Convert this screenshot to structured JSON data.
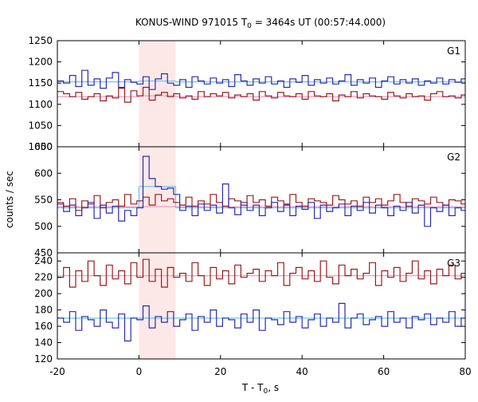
{
  "chart_data": {
    "type": "line",
    "title": {
      "main": "KONUS-WIND 971015 T",
      "sub": "0",
      "rest": " = 3464s UT (00:57:44.000)"
    },
    "xlabel": {
      "main": "T - T",
      "sub": "0",
      "rest": ", s"
    },
    "ylabel": "counts / sec",
    "xlim": [
      -20,
      80
    ],
    "xticks": [
      -20,
      0,
      20,
      40,
      60,
      80
    ],
    "highlight": {
      "x": [
        0,
        9
      ],
      "color": "#fde8e8"
    },
    "colors": {
      "red_series": "#9b1b1b",
      "blue_series": "#2b2bb0",
      "pink_fit": "#e6a0c8",
      "cyan_fit": "#6cc8e6",
      "highlight": "#fde8e8",
      "frame": "#000000"
    },
    "grid": false,
    "panels": [
      {
        "label": "G1",
        "ylim": [
          1000,
          1250
        ],
        "yticks": [
          1000,
          1050,
          1100,
          1150,
          1200,
          1250
        ],
        "bin_width": 1.5,
        "x_start": -20,
        "series": [
          {
            "color": "red",
            "values": [
              1130,
              1125,
              1118,
              1128,
              1112,
              1118,
              1125,
              1108,
              1120,
              1115,
              1138,
              1105,
              1132,
              1120,
              1140,
              1110,
              1122,
              1128,
              1118,
              1125,
              1115,
              1120,
              1112,
              1130,
              1118,
              1125,
              1120,
              1128,
              1115,
              1122,
              1118,
              1125,
              1110,
              1130,
              1120,
              1115,
              1128,
              1120,
              1118,
              1125,
              1112,
              1130,
              1120,
              1118,
              1125,
              1108,
              1122,
              1118,
              1130,
              1115,
              1125,
              1120,
              1118,
              1112,
              1128,
              1120,
              1115,
              1125,
              1118,
              1120,
              1110,
              1125,
              1130,
              1118,
              1120,
              1115,
              1122,
              1118
            ]
          },
          {
            "color": "blue",
            "values": [
              1155,
              1150,
              1168,
              1142,
              1180,
              1145,
              1160,
              1138,
              1162,
              1175,
              1140,
              1158,
              1152,
              1148,
              1165,
              1135,
              1160,
              1172,
              1150,
              1145,
              1158,
              1140,
              1165,
              1155,
              1148,
              1162,
              1150,
              1158,
              1142,
              1170,
              1155,
              1145,
              1160,
              1150,
              1165,
              1148,
              1155,
              1140,
              1160,
              1152,
              1168,
              1145,
              1158,
              1150,
              1162,
              1148,
              1155,
              1170,
              1145,
              1158,
              1150,
              1162,
              1140,
              1155,
              1165,
              1148,
              1158,
              1150,
              1160,
              1145,
              1155,
              1150,
              1162,
              1148,
              1158,
              1152,
              1160,
              1150
            ]
          }
        ],
        "fits": [
          {
            "color": "pink",
            "pre": [
              -20,
              0,
              1118
            ],
            "burst": [
              0,
              9,
              1120
            ],
            "post": [
              9,
              80,
              1118
            ]
          },
          {
            "color": "cyan",
            "pre": [
              -20,
              0,
              1153
            ],
            "burst": [
              0,
              9,
              1155
            ],
            "post": [
              9,
              80,
              1153
            ]
          }
        ]
      },
      {
        "label": "G2",
        "ylim": [
          450,
          650
        ],
        "yticks": [
          450,
          500,
          550,
          600,
          650
        ],
        "bin_width": 1.5,
        "x_start": -20,
        "series": [
          {
            "color": "red",
            "values": [
              545,
              538,
              552,
              530,
              548,
              542,
              558,
              535,
              545,
              550,
              538,
              560,
              542,
              548,
              555,
              540,
              560,
              548,
              552,
              545,
              540,
              555,
              538,
              548,
              542,
              560,
              545,
              538,
              552,
              548,
              540,
              558,
              545,
              550,
              538,
              555,
              548,
              542,
              560,
              545,
              538,
              552,
              548,
              545,
              540,
              558,
              550,
              542,
              548,
              538,
              555,
              545,
              552,
              540,
              548,
              560,
              545,
              538,
              552,
              548,
              542,
              555,
              545,
              540,
              550,
              548,
              542,
              545
            ]
          },
          {
            "color": "blue",
            "values": [
              542,
              528,
              540,
              520,
              535,
              545,
              515,
              540,
              525,
              538,
              510,
              530,
              520,
              535,
              632,
              590,
              575,
              570,
              572,
              560,
              530,
              538,
              520,
              542,
              530,
              540,
              525,
              580,
              535,
              522,
              545,
              530,
              540,
              520,
              535,
              545,
              528,
              540,
              520,
              538,
              532,
              545,
              515,
              540,
              528,
              535,
              542,
              520,
              538,
              530,
              545,
              525,
              540,
              535,
              520,
              538,
              530,
              545,
              525,
              540,
              500,
              535,
              528,
              540,
              520,
              535,
              530,
              538
            ]
          }
        ],
        "fits": [
          {
            "color": "pink",
            "pre": [
              -20,
              0,
              537
            ],
            "burst": [
              0,
              9,
              537
            ],
            "post": [
              9,
              80,
              537
            ]
          },
          {
            "color": "cyan",
            "pre": [
              -20,
              0,
              535
            ],
            "burst": [
              0,
              9,
              575
            ],
            "post": [
              9,
              80,
              535
            ]
          }
        ]
      },
      {
        "label": "G3",
        "ylim": [
          120,
          250
        ],
        "yticks": [
          120,
          140,
          160,
          180,
          200,
          220,
          240
        ],
        "bin_width": 1.5,
        "x_start": -20,
        "series": [
          {
            "color": "red",
            "values": [
              220,
              232,
              208,
              228,
              215,
              240,
              222,
              210,
              235,
              218,
              228,
              212,
              238,
              220,
              242,
              215,
              230,
              208,
              232,
              220,
              225,
              215,
              238,
              222,
              210,
              232,
              218,
              228,
              212,
              235,
              220,
              225,
              230,
              215,
              228,
              222,
              238,
              210,
              225,
              232,
              218,
              228,
              215,
              240,
              220,
              212,
              235,
              222,
              230,
              218,
              225,
              238,
              210,
              228,
              220,
              232,
              215,
              225,
              240,
              218,
              228,
              212,
              230,
              222,
              235,
              218,
              225,
              220
            ]
          },
          {
            "color": "blue",
            "values": [
              170,
              165,
              178,
              155,
              172,
              168,
              160,
              180,
              165,
              158,
              175,
              142,
              170,
              168,
              185,
              158,
              172,
              165,
              178,
              160,
              168,
              175,
              155,
              172,
              165,
              180,
              160,
              170,
              168,
              158,
              175,
              165,
              180,
              155,
              170,
              168,
              162,
              178,
              165,
              172,
              158,
              168,
              175,
              160,
              170,
              165,
              188,
              158,
              170,
              175,
              162,
              168,
              172,
              160,
              178,
              165,
              170,
              158,
              172,
              168,
              175,
              162,
              170,
              165,
              178,
              160,
              170,
              168
            ]
          }
        ],
        "fits": [
          {
            "color": "pink",
            "pre": [
              -20,
              0,
              222
            ],
            "burst": [
              0,
              9,
              222
            ],
            "post": [
              9,
              80,
              222
            ]
          },
          {
            "color": "cyan",
            "pre": [
              -20,
              0,
              170
            ],
            "burst": [
              0,
              9,
              170
            ],
            "post": [
              9,
              80,
              170
            ]
          }
        ]
      }
    ]
  }
}
